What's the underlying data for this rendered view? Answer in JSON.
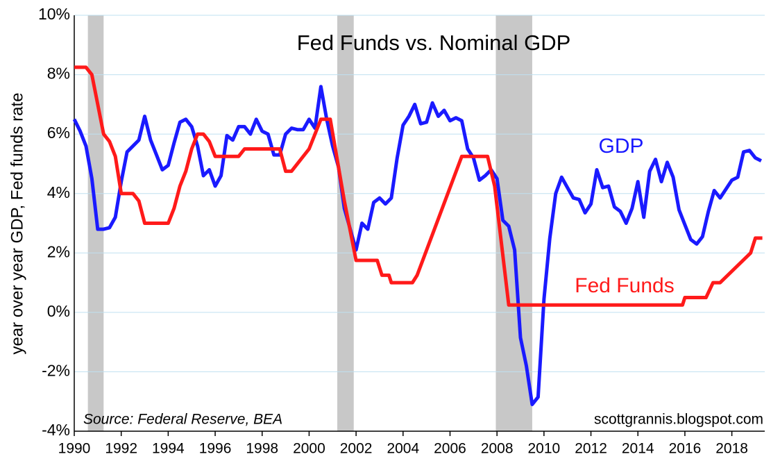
{
  "chart_data": {
    "type": "line",
    "title": "Fed Funds vs. Nominal GDP",
    "y_label": "year over year GDP, Fed funds rate",
    "annotations": [
      "Source: Federal Reserve, BEA",
      "scottgrannis.blogspot.com"
    ],
    "xlim": [
      1990,
      2019.4
    ],
    "xticks": [
      1990,
      1992,
      1994,
      1996,
      1998,
      2000,
      2002,
      2004,
      2006,
      2008,
      2010,
      2012,
      2014,
      2016,
      2018
    ],
    "ylim": [
      -4,
      10
    ],
    "yticks": [
      {
        "value": -4,
        "label": "-4%"
      },
      {
        "value": -2,
        "label": "-2%"
      },
      {
        "value": 0,
        "label": "0%"
      },
      {
        "value": 2,
        "label": "2%"
      },
      {
        "value": 4,
        "label": "4%"
      },
      {
        "value": 6,
        "label": "6%"
      },
      {
        "value": 8,
        "label": "8%"
      },
      {
        "value": 10,
        "label": "10%"
      }
    ],
    "grid": true,
    "recessions": [
      [
        1990.58,
        1991.25
      ],
      [
        2001.2,
        2001.9
      ],
      [
        2007.95,
        2009.5
      ]
    ],
    "recession_color": "#c8c8c8",
    "series": [
      {
        "name": "GDP",
        "color": "#1a1aff",
        "x": [
          1990,
          1990.25,
          1990.5,
          1990.75,
          1991,
          1991.25,
          1991.5,
          1991.75,
          1992,
          1992.25,
          1992.5,
          1992.75,
          1993,
          1993.25,
          1993.5,
          1993.75,
          1994,
          1994.25,
          1994.5,
          1994.75,
          1995,
          1995.25,
          1995.5,
          1995.75,
          1996,
          1996.25,
          1996.5,
          1996.75,
          1997,
          1997.25,
          1997.5,
          1997.75,
          1998,
          1998.25,
          1998.5,
          1998.75,
          1999,
          1999.25,
          1999.5,
          1999.75,
          2000,
          2000.25,
          2000.5,
          2000.75,
          2001,
          2001.25,
          2001.5,
          2001.75,
          2002,
          2002.25,
          2002.5,
          2002.75,
          2003,
          2003.25,
          2003.5,
          2003.75,
          2004,
          2004.25,
          2004.5,
          2004.75,
          2005,
          2005.25,
          2005.5,
          2005.75,
          2006,
          2006.25,
          2006.5,
          2006.75,
          2007,
          2007.25,
          2007.5,
          2007.75,
          2008,
          2008.25,
          2008.5,
          2008.75,
          2009,
          2009.25,
          2009.5,
          2009.75,
          2010,
          2010.25,
          2010.5,
          2010.75,
          2011,
          2011.25,
          2011.5,
          2011.75,
          2012,
          2012.25,
          2012.5,
          2012.75,
          2013,
          2013.25,
          2013.5,
          2013.75,
          2014,
          2014.25,
          2014.5,
          2014.75,
          2015,
          2015.25,
          2015.5,
          2015.75,
          2016,
          2016.25,
          2016.5,
          2016.75,
          2017,
          2017.25,
          2017.5,
          2017.75,
          2018,
          2018.25,
          2018.5,
          2018.75,
          2019,
          2019.25
        ],
        "values": [
          6.5,
          6.1,
          5.6,
          4.5,
          2.8,
          2.8,
          2.85,
          3.2,
          4.4,
          5.4,
          5.6,
          5.8,
          6.6,
          5.8,
          5.3,
          4.8,
          4.95,
          5.7,
          6.4,
          6.5,
          6.25,
          5.6,
          4.6,
          4.8,
          4.25,
          4.6,
          5.95,
          5.8,
          6.25,
          6.25,
          6.0,
          6.5,
          6.1,
          6.0,
          5.3,
          5.3,
          6.0,
          6.2,
          6.15,
          6.15,
          6.5,
          6.2,
          7.6,
          6.5,
          5.6,
          4.9,
          3.5,
          2.8,
          2.1,
          3.0,
          2.8,
          3.7,
          3.85,
          3.65,
          3.85,
          5.2,
          6.3,
          6.6,
          7.0,
          6.35,
          6.4,
          7.05,
          6.6,
          6.8,
          6.45,
          6.55,
          6.45,
          5.5,
          5.2,
          4.45,
          4.6,
          4.8,
          4.5,
          3.1,
          2.9,
          2.1,
          -0.85,
          -1.8,
          -3.1,
          -2.85,
          0.45,
          2.5,
          4.0,
          4.55,
          4.2,
          3.85,
          3.8,
          3.35,
          3.65,
          4.8,
          4.2,
          4.25,
          3.55,
          3.4,
          3.0,
          3.5,
          4.4,
          3.2,
          4.75,
          5.15,
          4.4,
          5.05,
          4.55,
          3.45,
          2.95,
          2.45,
          2.3,
          2.55,
          3.4,
          4.1,
          3.85,
          4.15,
          4.45,
          4.55,
          5.4,
          5.45,
          5.2,
          5.1
        ]
      },
      {
        "name": "Fed Funds",
        "color": "#ff1a1a",
        "x": [
          1990,
          1990.5,
          1990.75,
          1991.25,
          1991.5,
          1991.75,
          1992,
          1992.5,
          1992.75,
          1993,
          1994,
          1994.25,
          1994.5,
          1994.75,
          1995,
          1995.25,
          1995.5,
          1995.75,
          1996,
          1997,
          1997.25,
          1998.75,
          1999,
          1999.25,
          2000,
          2000.5,
          2000.9,
          2001.5,
          2002,
          2002.9,
          2003.1,
          2003.4,
          2003.5,
          2004.4,
          2004.6,
          2006.5,
          2007.6,
          2007.9,
          2008.5,
          2015.9,
          2016,
          2016.9,
          2017.2,
          2017.5,
          2018.8,
          2019,
          2019.3
        ],
        "values": [
          8.25,
          8.25,
          8.0,
          6.0,
          5.75,
          5.25,
          4.0,
          4.0,
          3.75,
          3.0,
          3.0,
          3.5,
          4.25,
          4.75,
          5.5,
          6.0,
          6.0,
          5.75,
          5.25,
          5.25,
          5.5,
          5.5,
          4.75,
          4.75,
          5.5,
          6.5,
          6.5,
          3.75,
          1.75,
          1.75,
          1.25,
          1.25,
          1.0,
          1.0,
          1.25,
          5.25,
          5.25,
          4.25,
          0.25,
          0.25,
          0.5,
          0.5,
          1.0,
          1.0,
          2.0,
          2.5,
          2.5
        ]
      }
    ]
  }
}
